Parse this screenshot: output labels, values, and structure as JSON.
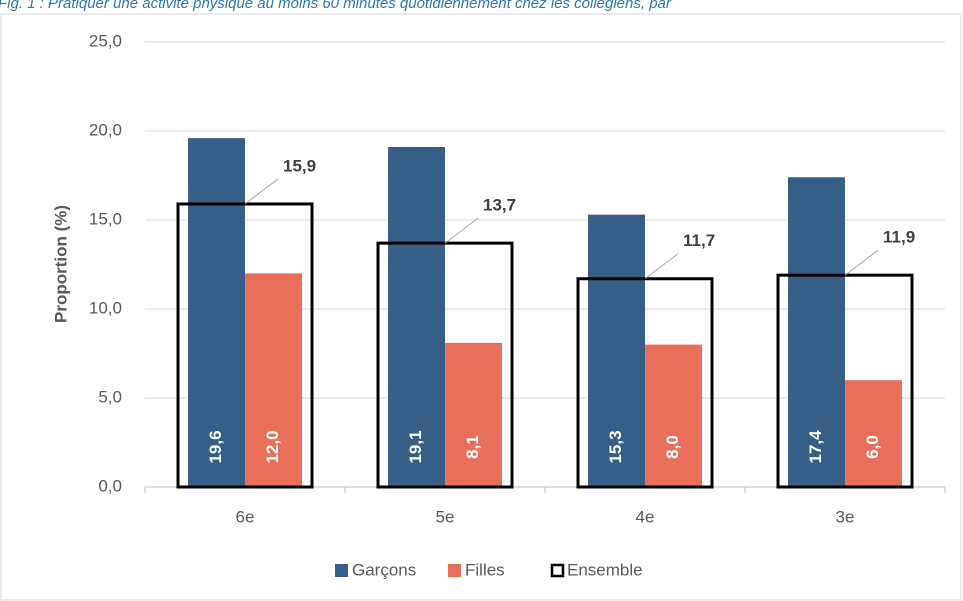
{
  "chart_data": {
    "type": "bar",
    "title": "Fig. 1 : Pratiquer une activité physique au moins 60 minutes quotidiennement chez les collégiens, par",
    "y_label": "Proportion (%)",
    "categories": [
      "6e",
      "5e",
      "4e",
      "3e"
    ],
    "series": [
      {
        "name": "Garçons",
        "color": "#375e87",
        "values": [
          19.6,
          19.1,
          15.3,
          17.4
        ],
        "value_labels": [
          "19,6",
          "19,1",
          "15,3",
          "17,4"
        ]
      },
      {
        "name": "Filles",
        "color": "#e8705b",
        "values": [
          12.0,
          8.1,
          8.0,
          6.0
        ],
        "value_labels": [
          "12,0",
          "8,1",
          "8,0",
          "6,0"
        ]
      },
      {
        "name": "Ensemble",
        "color": "#000000",
        "style": "outline",
        "values": [
          15.9,
          13.7,
          11.7,
          11.9
        ],
        "value_labels": [
          "15,9",
          "13,7",
          "11,7",
          "11,9"
        ]
      }
    ],
    "ylim": [
      0,
      25
    ],
    "yticks": [
      {
        "value": 0,
        "label": "0,0"
      },
      {
        "value": 5,
        "label": "5,0"
      },
      {
        "value": 10,
        "label": "10,0"
      },
      {
        "value": 15,
        "label": "15,0"
      },
      {
        "value": 20,
        "label": "20,0"
      },
      {
        "value": 25,
        "label": "25,0"
      }
    ],
    "grid": true,
    "legend": "bottom"
  }
}
